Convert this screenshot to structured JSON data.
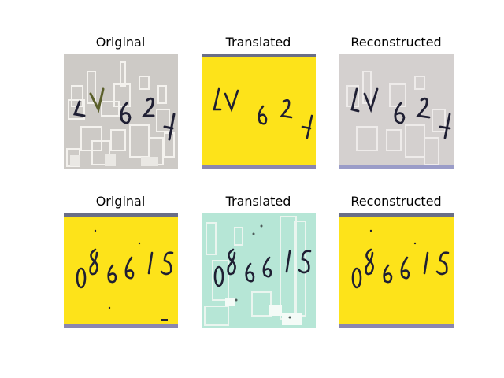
{
  "figure": {
    "rows": [
      {
        "panels": [
          {
            "title": "Original",
            "image_description": "gray captcha with white block noise and digits 4 6 2 1"
          },
          {
            "title": "Translated",
            "image_description": "yellow captcha with digits 4 6 2 1"
          },
          {
            "title": "Reconstructed",
            "image_description": "gray captcha reconstruction with digits 4 6 2 1"
          }
        ]
      },
      {
        "panels": [
          {
            "title": "Original",
            "image_description": "yellow captcha with digits 0 8 6 6 1 5"
          },
          {
            "title": "Translated",
            "image_description": "mint green captcha with block noise and digits 0 8 6 6 1 5"
          },
          {
            "title": "Reconstructed",
            "image_description": "yellow captcha reconstruction with digits 0 8 6 6 1 5"
          }
        ]
      }
    ],
    "colors": {
      "gray_bg": "#cdcac6",
      "yellow_bg": "#fde31a",
      "mint_bg": "#b6e6d6",
      "recon_gray_bg": "#d4d0cf",
      "ink": "#1f1f33"
    }
  }
}
